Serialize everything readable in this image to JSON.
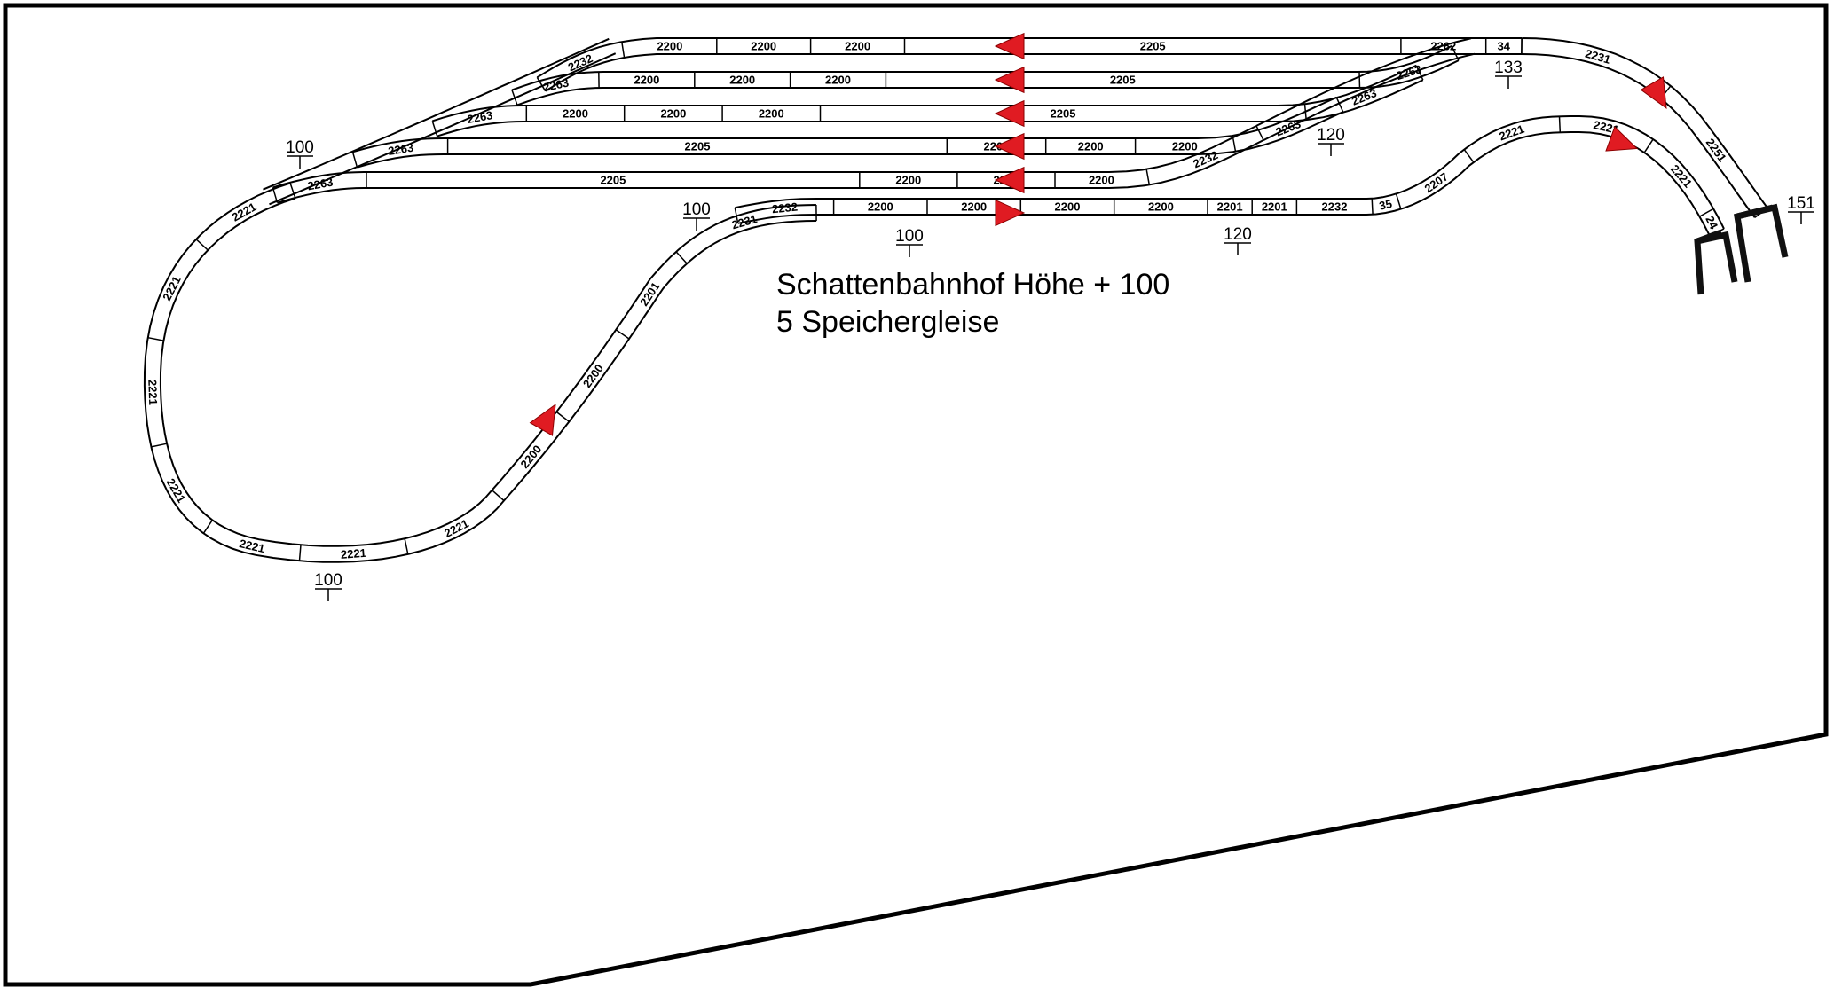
{
  "title": {
    "line1": "Schattenbahnhof Höhe + 100",
    "line2": "5 Speichergleise"
  },
  "colors": {
    "track": "#000000",
    "arrow": "#e01b22",
    "board": "#000000",
    "tunnel": "#111111"
  },
  "icons": [
    "direction-arrow-icon",
    "tunnel-portal-icon",
    "height-marker-icon"
  ],
  "siding_tracks": [
    {
      "id": "g1",
      "segments": [
        "2232",
        "2200",
        "2200",
        "2200",
        "2205",
        "2262",
        "34"
      ]
    },
    {
      "id": "g2",
      "segments": [
        "2263",
        "2200",
        "2200",
        "2200",
        "2205",
        "2263"
      ]
    },
    {
      "id": "g3",
      "segments": [
        "2263",
        "2200",
        "2200",
        "2200",
        "2205",
        "2263"
      ]
    },
    {
      "id": "g4",
      "segments": [
        "2263",
        "2205",
        "2200",
        "2200",
        "2200",
        "2263"
      ]
    },
    {
      "id": "g5",
      "segments": [
        "2263",
        "2205",
        "2200",
        "2200",
        "2200",
        "2232"
      ]
    }
  ],
  "through_track": {
    "segments": [
      "2232",
      "2200",
      "2200",
      "2200",
      "2200",
      "2201",
      "2201",
      "2232",
      "35",
      "2207",
      "2221",
      "2221",
      "2221",
      "24"
    ]
  },
  "loop": {
    "segments": [
      "2221",
      "2221",
      "2221",
      "2221",
      "2221",
      "2221",
      "2221",
      "2200",
      "2200",
      "2201",
      "2231"
    ]
  },
  "outer_return": {
    "segments": [
      "2231",
      "2251"
    ]
  },
  "height_markers": [
    "100",
    "100",
    "100",
    "100",
    "120",
    "120",
    "133",
    "151"
  ]
}
